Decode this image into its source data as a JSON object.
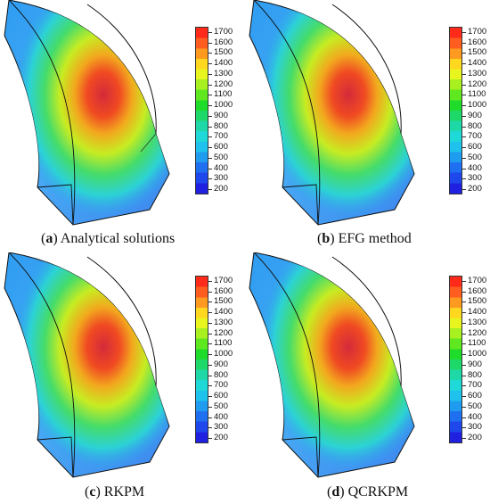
{
  "colorbar": {
    "ticks": [
      "1700",
      "1600",
      "1500",
      "1400",
      "1300",
      "1200",
      "1100",
      "1000",
      "900",
      "800",
      "700",
      "600",
      "500",
      "400",
      "300",
      "200"
    ],
    "colors": [
      "#ff2a1a",
      "#ff5d1f",
      "#ff9a20",
      "#ffd71f",
      "#e8f51f",
      "#a8f01f",
      "#5fe81f",
      "#1fdc2a",
      "#1fd86a",
      "#1fd8a8",
      "#1fd8d8",
      "#1fc2ec",
      "#1f9cf0",
      "#1f70f0",
      "#1f48ec",
      "#2020e0"
    ]
  },
  "panels": [
    {
      "letter": "a",
      "title": "Analytical solutions"
    },
    {
      "letter": "b",
      "title": "EFG method"
    },
    {
      "letter": "c",
      "title": "RKPM"
    },
    {
      "letter": "d",
      "title": "QCRKPM"
    }
  ]
}
